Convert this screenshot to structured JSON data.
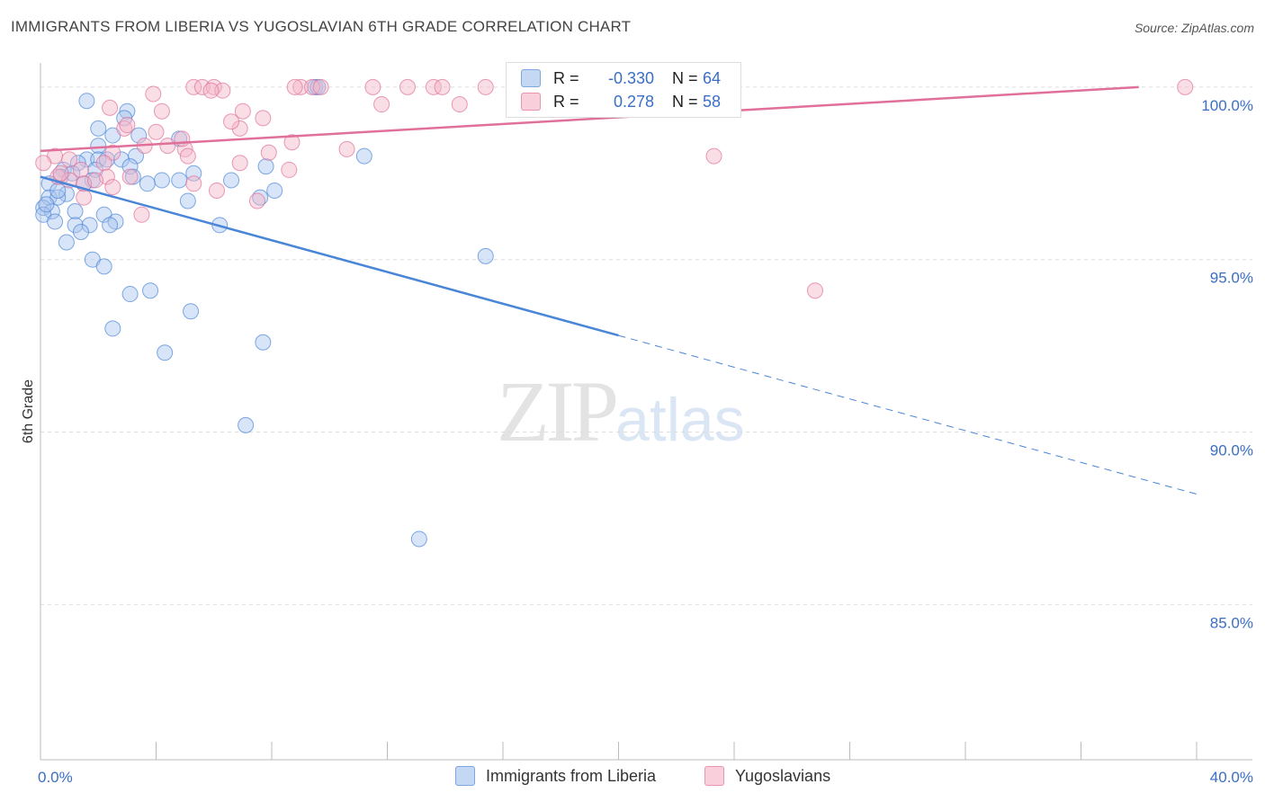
{
  "header": {
    "title": "IMMIGRANTS FROM LIBERIA VS YUGOSLAVIAN 6TH GRADE CORRELATION CHART",
    "source": "Source: ZipAtlas.com"
  },
  "watermark": {
    "zip": "ZIP",
    "atlas": "atlas"
  },
  "legend": {
    "rows": [
      {
        "r_label": "R =",
        "r_value": "-0.330",
        "n_label": "N =",
        "n_value": "64",
        "color": "#a8c4ee"
      },
      {
        "r_label": "R =",
        "r_value": "0.278",
        "n_label": "N =",
        "n_value": "58",
        "color": "#f4b6c8"
      }
    ]
  },
  "bottom_legend": [
    {
      "label": "Immigrants from Liberia",
      "color": "#a8c4ee"
    },
    {
      "label": "Yugoslavians",
      "color": "#f4b6c8"
    }
  ],
  "chart_data": {
    "type": "scatter",
    "title": "IMMIGRANTS FROM LIBERIA VS YUGOSLAVIAN 6TH GRADE CORRELATION CHART",
    "xlabel": "",
    "ylabel": "6th Grade",
    "xlim": [
      0,
      40
    ],
    "ylim": [
      80.5,
      100.7
    ],
    "x_tick_labels": [
      {
        "value": 0,
        "label": "0.0%"
      },
      {
        "value": 40,
        "label": "40.0%"
      }
    ],
    "x_minor_ticks": [
      4,
      8,
      12,
      16,
      20,
      24,
      28,
      32,
      36,
      40
    ],
    "y_ticks": [
      {
        "value": 100,
        "label": "100.0%"
      },
      {
        "value": 95,
        "label": "95.0%"
      },
      {
        "value": 90,
        "label": "90.0%"
      },
      {
        "value": 85,
        "label": "85.0%"
      }
    ],
    "series": [
      {
        "name": "Immigrants from Liberia",
        "color": "#4a86d8",
        "fill": "#a8c4ee",
        "trend": {
          "x0": 0,
          "y0": 97.4,
          "x1": 40,
          "y1": 88.2,
          "solid_until": 20
        },
        "points": [
          [
            1.6,
            99.6
          ],
          [
            3.0,
            99.3
          ],
          [
            2.9,
            99.1
          ],
          [
            2.0,
            98.8
          ],
          [
            2.5,
            98.6
          ],
          [
            3.4,
            98.6
          ],
          [
            4.8,
            98.5
          ],
          [
            2.0,
            98.3
          ],
          [
            3.3,
            98.0
          ],
          [
            11.2,
            98.0
          ],
          [
            1.6,
            97.9
          ],
          [
            2.0,
            97.9
          ],
          [
            2.3,
            97.9
          ],
          [
            2.8,
            97.9
          ],
          [
            1.3,
            97.8
          ],
          [
            3.1,
            97.7
          ],
          [
            7.8,
            97.7
          ],
          [
            0.8,
            97.6
          ],
          [
            1.9,
            97.6
          ],
          [
            5.3,
            97.5
          ],
          [
            0.7,
            97.4
          ],
          [
            3.2,
            97.4
          ],
          [
            1.8,
            97.3
          ],
          [
            4.2,
            97.3
          ],
          [
            4.8,
            97.3
          ],
          [
            6.6,
            97.3
          ],
          [
            0.3,
            97.2
          ],
          [
            1.5,
            97.2
          ],
          [
            3.7,
            97.2
          ],
          [
            8.1,
            97.0
          ],
          [
            0.9,
            96.9
          ],
          [
            0.3,
            96.8
          ],
          [
            0.6,
            96.8
          ],
          [
            7.6,
            96.8
          ],
          [
            5.1,
            96.7
          ],
          [
            0.1,
            96.5
          ],
          [
            0.4,
            96.4
          ],
          [
            1.2,
            96.4
          ],
          [
            0.1,
            96.3
          ],
          [
            2.2,
            96.3
          ],
          [
            0.5,
            96.1
          ],
          [
            2.6,
            96.1
          ],
          [
            1.2,
            96.0
          ],
          [
            1.7,
            96.0
          ],
          [
            2.4,
            96.0
          ],
          [
            6.2,
            96.0
          ],
          [
            1.4,
            95.8
          ],
          [
            0.9,
            95.5
          ],
          [
            15.4,
            95.1
          ],
          [
            1.8,
            95.0
          ],
          [
            2.2,
            94.8
          ],
          [
            3.8,
            94.1
          ],
          [
            3.1,
            94.0
          ],
          [
            5.2,
            93.5
          ],
          [
            2.5,
            93.0
          ],
          [
            7.7,
            92.6
          ],
          [
            4.3,
            92.3
          ],
          [
            7.1,
            90.2
          ],
          [
            13.1,
            86.9
          ],
          [
            9.5,
            100.0
          ],
          [
            9.6,
            100.0
          ],
          [
            0.6,
            97.0
          ],
          [
            1.1,
            97.5
          ],
          [
            0.2,
            96.6
          ]
        ]
      },
      {
        "name": "Yugoslavians",
        "color": "#e0709a",
        "fill": "#f4b6c8",
        "trend": {
          "x0": 0,
          "y0": 98.15,
          "x1": 38,
          "y1": 100.0,
          "solid_until": 38
        },
        "points": [
          [
            5.3,
            100.0
          ],
          [
            5.6,
            100.0
          ],
          [
            6.0,
            100.0
          ],
          [
            9.0,
            100.0
          ],
          [
            9.4,
            100.0
          ],
          [
            9.7,
            100.0
          ],
          [
            11.5,
            100.0
          ],
          [
            12.7,
            100.0
          ],
          [
            13.6,
            100.0
          ],
          [
            13.9,
            100.0
          ],
          [
            15.4,
            100.0
          ],
          [
            39.6,
            100.0
          ],
          [
            6.3,
            99.9
          ],
          [
            5.9,
            99.9
          ],
          [
            3.9,
            99.8
          ],
          [
            11.8,
            99.5
          ],
          [
            14.5,
            99.5
          ],
          [
            2.4,
            99.4
          ],
          [
            4.2,
            99.3
          ],
          [
            7.0,
            99.3
          ],
          [
            7.7,
            99.1
          ],
          [
            6.9,
            98.8
          ],
          [
            2.9,
            98.8
          ],
          [
            4.0,
            98.7
          ],
          [
            8.7,
            98.4
          ],
          [
            4.4,
            98.3
          ],
          [
            3.6,
            98.3
          ],
          [
            10.6,
            98.2
          ],
          [
            5.0,
            98.2
          ],
          [
            7.9,
            98.1
          ],
          [
            2.5,
            98.1
          ],
          [
            0.5,
            98.0
          ],
          [
            23.3,
            98.0
          ],
          [
            1.0,
            97.9
          ],
          [
            2.2,
            97.8
          ],
          [
            6.9,
            97.8
          ],
          [
            0.1,
            97.8
          ],
          [
            8.6,
            97.6
          ],
          [
            1.4,
            97.6
          ],
          [
            0.6,
            97.4
          ],
          [
            2.3,
            97.4
          ],
          [
            3.1,
            97.4
          ],
          [
            1.0,
            97.3
          ],
          [
            1.5,
            97.2
          ],
          [
            5.3,
            97.2
          ],
          [
            2.5,
            97.1
          ],
          [
            6.1,
            97.0
          ],
          [
            1.5,
            96.8
          ],
          [
            7.5,
            96.7
          ],
          [
            3.5,
            96.3
          ],
          [
            26.8,
            94.1
          ],
          [
            4.9,
            98.5
          ],
          [
            1.9,
            97.3
          ],
          [
            0.7,
            97.5
          ],
          [
            8.8,
            100.0
          ],
          [
            6.6,
            99.0
          ],
          [
            3.0,
            98.9
          ],
          [
            5.1,
            98.0
          ]
        ]
      }
    ]
  }
}
